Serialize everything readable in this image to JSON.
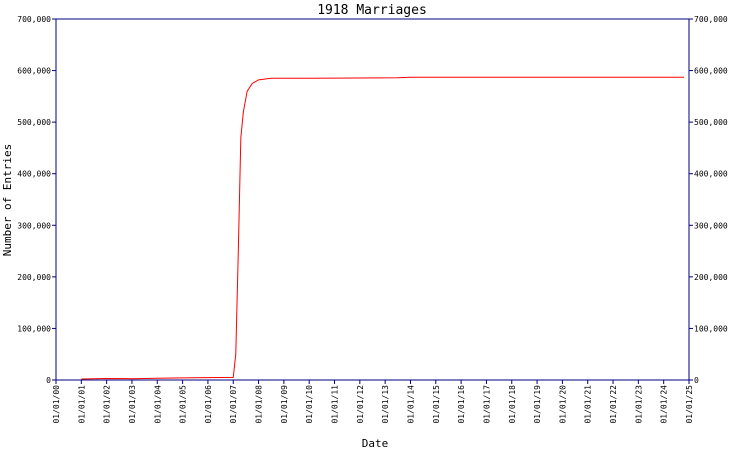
{
  "chart_data": {
    "type": "line",
    "title": "1918 Marriages",
    "x_label": "Date",
    "y_label": "Number of Entries",
    "x": [
      1.0,
      2.0,
      3.0,
      4.0,
      5.0,
      6.0,
      7.0,
      7.1,
      7.2,
      7.3,
      7.4,
      7.55,
      7.75,
      8.0,
      8.5,
      10.0,
      13.5,
      14.0,
      24.8
    ],
    "series": [
      {
        "name": "1918 Marriages",
        "color": "#ff0000",
        "values": [
          2000,
          3000,
          2500,
          3500,
          4000,
          4500,
          5000,
          50000,
          250000,
          470000,
          520000,
          560000,
          575000,
          582000,
          585000,
          585000,
          586000,
          587000,
          587000
        ]
      }
    ],
    "xlim": [
      0,
      25
    ],
    "xticks": [
      {
        "value": 0,
        "label": "01/01/00"
      },
      {
        "value": 1,
        "label": "01/01/01"
      },
      {
        "value": 2,
        "label": "01/01/02"
      },
      {
        "value": 3,
        "label": "01/01/03"
      },
      {
        "value": 4,
        "label": "01/01/04"
      },
      {
        "value": 5,
        "label": "01/01/05"
      },
      {
        "value": 6,
        "label": "01/01/06"
      },
      {
        "value": 7,
        "label": "01/01/07"
      },
      {
        "value": 8,
        "label": "01/01/08"
      },
      {
        "value": 9,
        "label": "01/01/09"
      },
      {
        "value": 10,
        "label": "01/01/10"
      },
      {
        "value": 11,
        "label": "01/01/11"
      },
      {
        "value": 12,
        "label": "01/01/12"
      },
      {
        "value": 13,
        "label": "01/01/13"
      },
      {
        "value": 14,
        "label": "01/01/14"
      },
      {
        "value": 15,
        "label": "01/01/15"
      },
      {
        "value": 16,
        "label": "01/01/16"
      },
      {
        "value": 17,
        "label": "01/01/17"
      },
      {
        "value": 18,
        "label": "01/01/18"
      },
      {
        "value": 19,
        "label": "01/01/19"
      },
      {
        "value": 20,
        "label": "01/01/20"
      },
      {
        "value": 21,
        "label": "01/01/21"
      },
      {
        "value": 22,
        "label": "01/01/22"
      },
      {
        "value": 23,
        "label": "01/01/23"
      },
      {
        "value": 24,
        "label": "01/01/24"
      },
      {
        "value": 25,
        "label": "01/01/25"
      }
    ],
    "ylim": [
      0,
      700000
    ],
    "yticks": [
      0,
      {
        "value": 100000,
        "label": "100,000"
      },
      {
        "value": 200000,
        "label": "200,000"
      },
      {
        "value": 300000,
        "label": "300,000"
      },
      {
        "value": 400000,
        "label": "400,000"
      },
      {
        "value": 500000,
        "label": "500,000"
      },
      {
        "value": 600000,
        "label": "600,000"
      },
      {
        "value": 700000,
        "label": "700,000"
      }
    ],
    "y2lim": [
      0,
      700000
    ],
    "y2ticks": [
      0,
      {
        "value": 100000,
        "label": "100,000"
      },
      {
        "value": 200000,
        "label": "200,000"
      },
      {
        "value": 300000,
        "label": "300,000"
      },
      {
        "value": 400000,
        "label": "400,000"
      },
      {
        "value": 500000,
        "label": "500,000"
      },
      {
        "value": 600000,
        "label": "600,000"
      },
      {
        "value": 700000,
        "label": "700,000"
      }
    ],
    "axis_color": "#000080"
  }
}
